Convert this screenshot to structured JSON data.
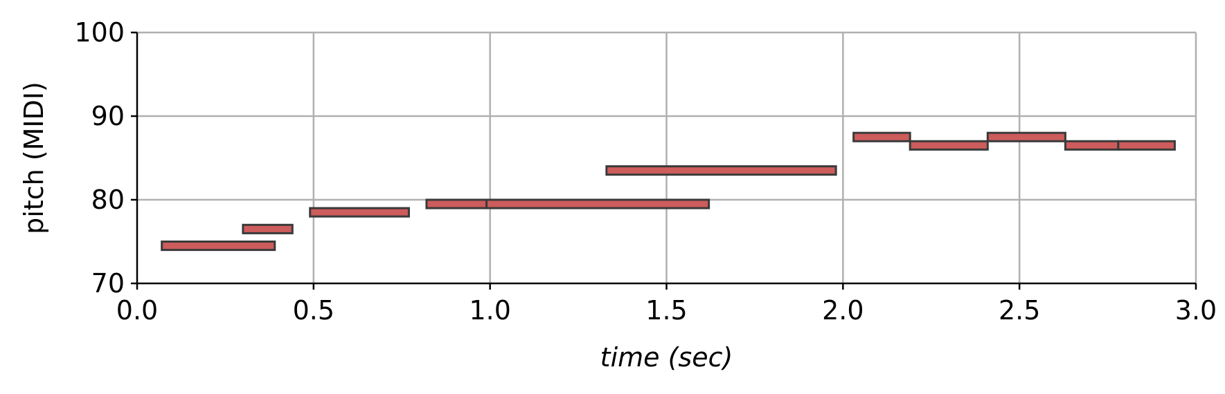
{
  "chart_data": {
    "type": "piano-roll",
    "xlabel": "time (sec)",
    "ylabel": "pitch (MIDI)",
    "xlim": [
      0.0,
      3.0
    ],
    "ylim": [
      70,
      100
    ],
    "xticks": [
      0.0,
      0.5,
      1.0,
      1.5,
      2.0,
      2.5,
      3.0
    ],
    "xtick_labels": [
      "0.0",
      "0.5",
      "1.0",
      "1.5",
      "2.0",
      "2.5",
      "3.0"
    ],
    "yticks": [
      70,
      80,
      90,
      100
    ],
    "ytick_labels": [
      "70",
      "80",
      "90",
      "100"
    ],
    "grid": true,
    "note_color": "#cd5c5c",
    "note_edge_color": "#3a3a3a",
    "notes": [
      {
        "start": 0.07,
        "end": 0.39,
        "pitch": 74
      },
      {
        "start": 0.3,
        "end": 0.44,
        "pitch": 76
      },
      {
        "start": 0.49,
        "end": 0.77,
        "pitch": 78
      },
      {
        "start": 0.82,
        "end": 0.99,
        "pitch": 79
      },
      {
        "start": 0.99,
        "end": 1.62,
        "pitch": 79
      },
      {
        "start": 1.33,
        "end": 1.98,
        "pitch": 83
      },
      {
        "start": 2.03,
        "end": 2.19,
        "pitch": 87
      },
      {
        "start": 2.19,
        "end": 2.41,
        "pitch": 86
      },
      {
        "start": 2.41,
        "end": 2.63,
        "pitch": 87
      },
      {
        "start": 2.63,
        "end": 2.78,
        "pitch": 86
      },
      {
        "start": 2.78,
        "end": 2.94,
        "pitch": 86
      }
    ]
  }
}
